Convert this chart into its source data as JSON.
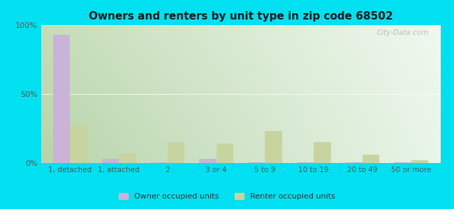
{
  "title": "Owners and renters by unit type in zip code 68502",
  "categories": [
    "1, detached",
    "1, attached",
    "2",
    "3 or 4",
    "5 to 9",
    "10 to 19",
    "20 to 49",
    "50 or more"
  ],
  "owner_values": [
    93,
    3,
    0.5,
    3,
    0.5,
    0.5,
    0.5,
    0.5
  ],
  "renter_values": [
    28,
    7,
    15,
    14,
    23,
    15,
    6,
    2
  ],
  "owner_color": "#c9b3d9",
  "renter_color": "#c8d4a0",
  "background_outer": "#00e0f0",
  "ylim": [
    0,
    100
  ],
  "yticks": [
    0,
    50,
    100
  ],
  "ytick_labels": [
    "0%",
    "50%",
    "100%"
  ],
  "legend_labels": [
    "Owner occupied units",
    "Renter occupied units"
  ],
  "watermark": "City-Data.com",
  "bar_width": 0.35,
  "grad_top_left": "#c8dfc0",
  "grad_bottom_right": "#f5fbf5"
}
